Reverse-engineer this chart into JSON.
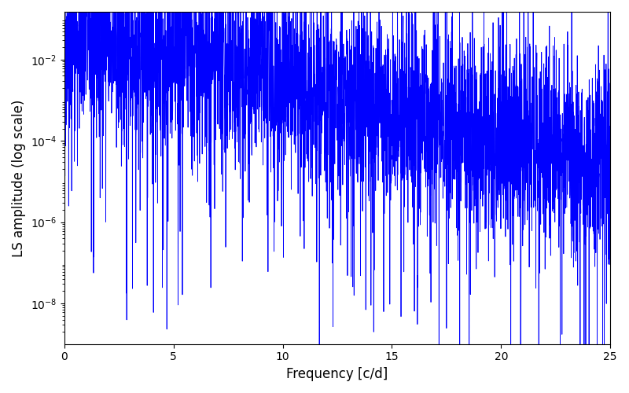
{
  "xlabel": "Frequency [c/d]",
  "ylabel": "LS amplitude (log scale)",
  "line_color": "#0000ff",
  "xlim": [
    0,
    25
  ],
  "ylim": [
    1e-09,
    0.15
  ],
  "freq_max": 25.0,
  "n_points": 4000,
  "seed": 42,
  "line_width": 0.6,
  "figsize": [
    8.0,
    5.0
  ],
  "dpi": 100,
  "yticks": [
    1e-08,
    1e-06,
    0.0001,
    0.01
  ],
  "xticks": [
    0,
    5,
    10,
    15,
    20,
    25
  ]
}
